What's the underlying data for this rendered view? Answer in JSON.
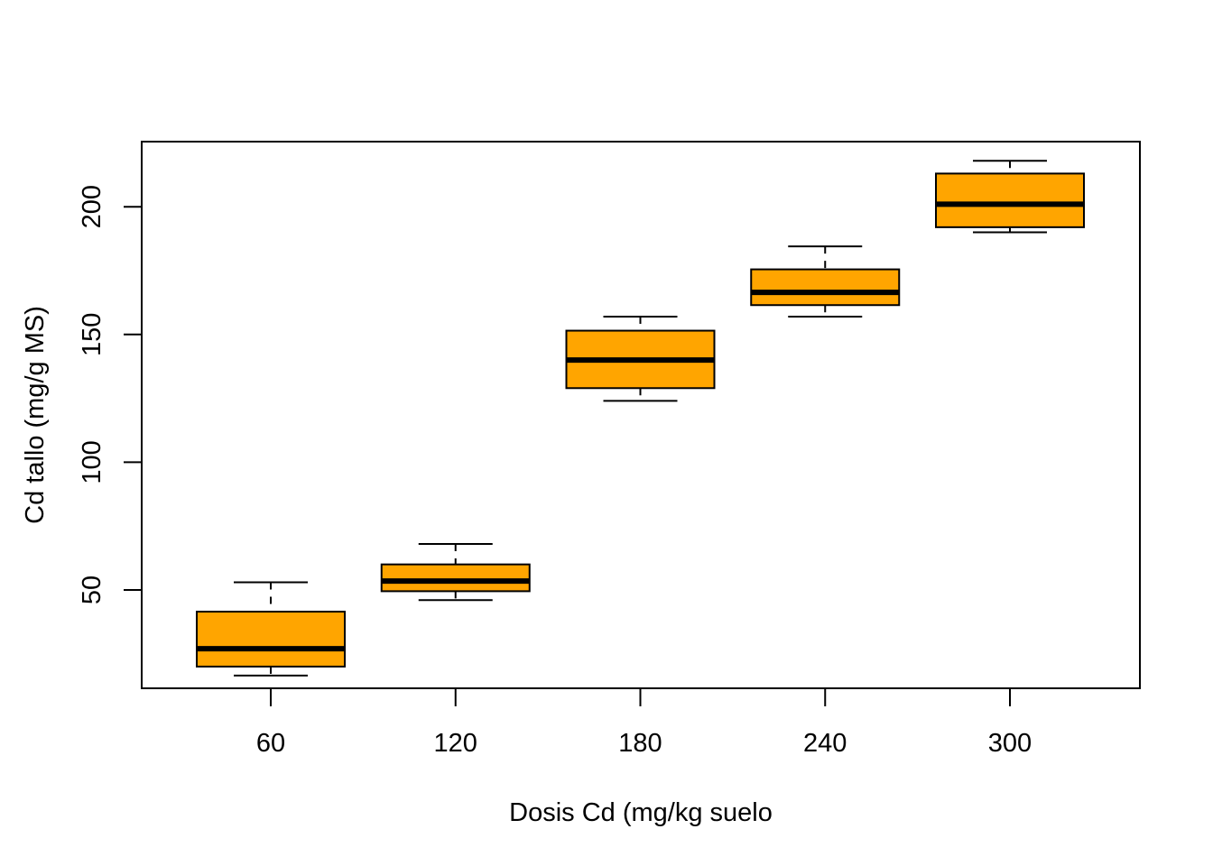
{
  "chart_data": {
    "type": "boxplot",
    "title": "",
    "xlabel": "Dosis Cd (mg/kg suelo",
    "ylabel": "Cd tallo (mg/g MS)",
    "categories": [
      "60",
      "120",
      "180",
      "240",
      "300"
    ],
    "boxes": [
      {
        "category": "60",
        "min": 16.5,
        "q1": 20,
        "median": 27,
        "q3": 41.5,
        "max": 53
      },
      {
        "category": "120",
        "min": 46,
        "q1": 49.5,
        "median": 53.5,
        "q3": 60,
        "max": 68
      },
      {
        "category": "180",
        "min": 124,
        "q1": 129,
        "median": 140,
        "q3": 151.5,
        "max": 157
      },
      {
        "category": "240",
        "min": 157,
        "q1": 161.5,
        "median": 166.5,
        "q3": 175.5,
        "max": 184.5
      },
      {
        "category": "300",
        "min": 190,
        "q1": 192,
        "median": 201,
        "q3": 213,
        "max": 218
      }
    ],
    "yticks": [
      50,
      100,
      150,
      200
    ],
    "ylim": [
      11.5,
      225.5
    ],
    "box_color": "#FFA500",
    "grid": false,
    "legend": "none"
  }
}
